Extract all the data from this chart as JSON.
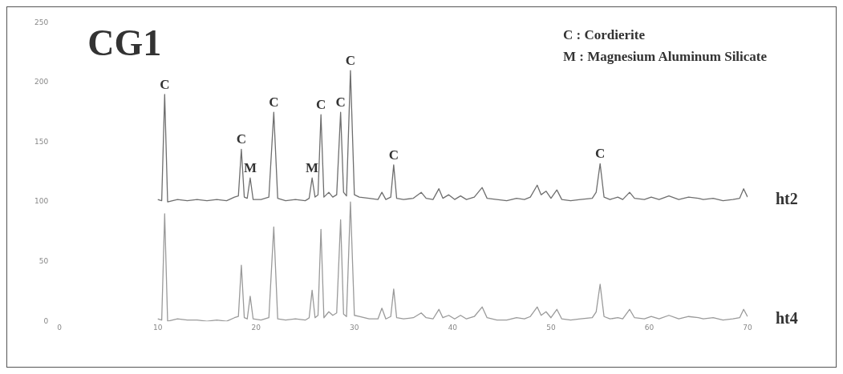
{
  "chart_data": {
    "type": "line",
    "title": "CG1",
    "x": [
      10,
      10.4,
      10.7,
      11.0,
      12,
      13,
      14,
      15,
      16,
      17,
      17.8,
      18.2,
      18.5,
      18.8,
      19.1,
      19.4,
      19.7,
      20.5,
      21.3,
      21.8,
      22.2,
      23,
      24,
      25,
      25.4,
      25.7,
      26.0,
      26.3,
      26.6,
      26.9,
      27.4,
      27.8,
      28.2,
      28.6,
      28.9,
      29.2,
      29.6,
      30.0,
      30.5,
      31.5,
      32.4,
      32.8,
      33.2,
      33.7,
      34.0,
      34.3,
      35,
      36,
      36.8,
      37.3,
      38,
      38.6,
      39,
      39.6,
      40.2,
      40.8,
      41.4,
      42.2,
      43.0,
      43.5,
      44.5,
      45.5,
      46.5,
      47.3,
      47.9,
      48.6,
      49.0,
      49.5,
      50.0,
      50.6,
      51.1,
      52,
      53,
      54.2,
      54.6,
      55.0,
      55.4,
      56,
      56.8,
      57.3,
      58.0,
      58.5,
      59.5,
      60.2,
      61,
      62,
      63,
      64,
      65,
      65.5,
      66.5,
      67.5,
      68.5,
      69.2,
      69.6,
      70
    ],
    "series": [
      {
        "name": "ht2",
        "color": "#6e6e6e",
        "values": [
          102,
          101,
          190,
          100,
          102,
          101,
          102,
          101,
          102,
          101,
          104,
          105,
          144,
          104,
          103,
          120,
          102,
          102,
          104,
          175,
          103,
          101,
          102,
          101,
          103,
          120,
          104,
          106,
          173,
          104,
          108,
          104,
          106,
          175,
          108,
          105,
          210,
          106,
          104,
          103,
          102,
          108,
          102,
          104,
          131,
          103,
          102,
          103,
          108,
          103,
          102,
          111,
          103,
          106,
          102,
          105,
          102,
          104,
          112,
          103,
          102,
          101,
          103,
          102,
          104,
          114,
          106,
          109,
          103,
          110,
          102,
          101,
          102,
          103,
          108,
          132,
          104,
          102,
          104,
          102,
          108,
          103,
          102,
          104,
          102,
          105,
          102,
          104,
          103,
          102,
          103,
          101,
          102,
          103,
          111,
          104
        ]
      },
      {
        "name": "ht4",
        "color": "#9a9a9a",
        "values": [
          2,
          1,
          90,
          0,
          2,
          1,
          1,
          0,
          1,
          0,
          3,
          4,
          47,
          3,
          2,
          21,
          2,
          1,
          3,
          79,
          2,
          1,
          2,
          1,
          3,
          26,
          3,
          5,
          77,
          3,
          8,
          5,
          7,
          85,
          6,
          4,
          100,
          5,
          4,
          2,
          2,
          11,
          2,
          4,
          27,
          3,
          2,
          3,
          7,
          3,
          2,
          10,
          3,
          5,
          2,
          5,
          2,
          4,
          12,
          3,
          1,
          1,
          3,
          2,
          4,
          12,
          5,
          8,
          3,
          10,
          2,
          1,
          2,
          3,
          8,
          31,
          4,
          2,
          3,
          2,
          10,
          3,
          2,
          4,
          2,
          5,
          2,
          4,
          3,
          2,
          3,
          1,
          2,
          3,
          10,
          4
        ]
      }
    ],
    "xlim": [
      0,
      70
    ],
    "xticks": [
      0,
      10,
      20,
      30,
      40,
      50,
      60,
      70
    ],
    "ylim": [
      0,
      250
    ],
    "yticks": [
      0,
      50,
      100,
      150,
      200,
      250
    ],
    "grid": false,
    "legend": false,
    "marker": "none",
    "line_style": "solid",
    "annotations": [
      "C : Cordierite",
      "M : Magnesium Aluminum Silicate",
      {
        "text": "C",
        "x": 10.7,
        "y": 190
      },
      {
        "text": "C",
        "x": 18.5,
        "y": 144
      },
      {
        "text": "M",
        "x": 19.4,
        "y": 120
      },
      {
        "text": "C",
        "x": 21.8,
        "y": 175
      },
      {
        "text": "M",
        "x": 25.7,
        "y": 120
      },
      {
        "text": "C",
        "x": 26.6,
        "y": 173
      },
      {
        "text": "C",
        "x": 28.6,
        "y": 175
      },
      {
        "text": "C",
        "x": 29.6,
        "y": 210
      },
      {
        "text": "C",
        "x": 34.0,
        "y": 131
      },
      {
        "text": "C",
        "x": 55.0,
        "y": 132
      }
    ]
  }
}
